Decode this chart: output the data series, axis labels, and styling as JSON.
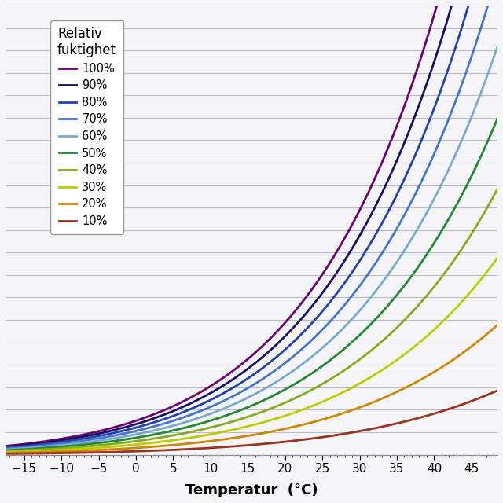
{
  "title": "",
  "xlabel": "Temperatur  (°C)",
  "ylabel": "",
  "legend_title": "Relativ\nfuktighet",
  "rh_levels": [
    100,
    90,
    80,
    70,
    60,
    50,
    40,
    30,
    20,
    10
  ],
  "colors": [
    "#6B0070",
    "#1a1060",
    "#2244aa",
    "#4477cc",
    "#77aacc",
    "#228833",
    "#88aa22",
    "#bbcc00",
    "#cc8800",
    "#993322"
  ],
  "t_min": -17.5,
  "t_max": 48.5,
  "xlim": [
    -17.5,
    48.5
  ],
  "ylim": [
    0,
    50
  ],
  "xticks": [
    -15,
    -10,
    -5,
    0,
    5,
    10,
    15,
    20,
    25,
    30,
    35,
    40,
    45
  ],
  "ytick_spacing": 2.5,
  "background_color": "#f5f5f8",
  "grid_color": "#bbbbcc",
  "linewidth": 2.0
}
